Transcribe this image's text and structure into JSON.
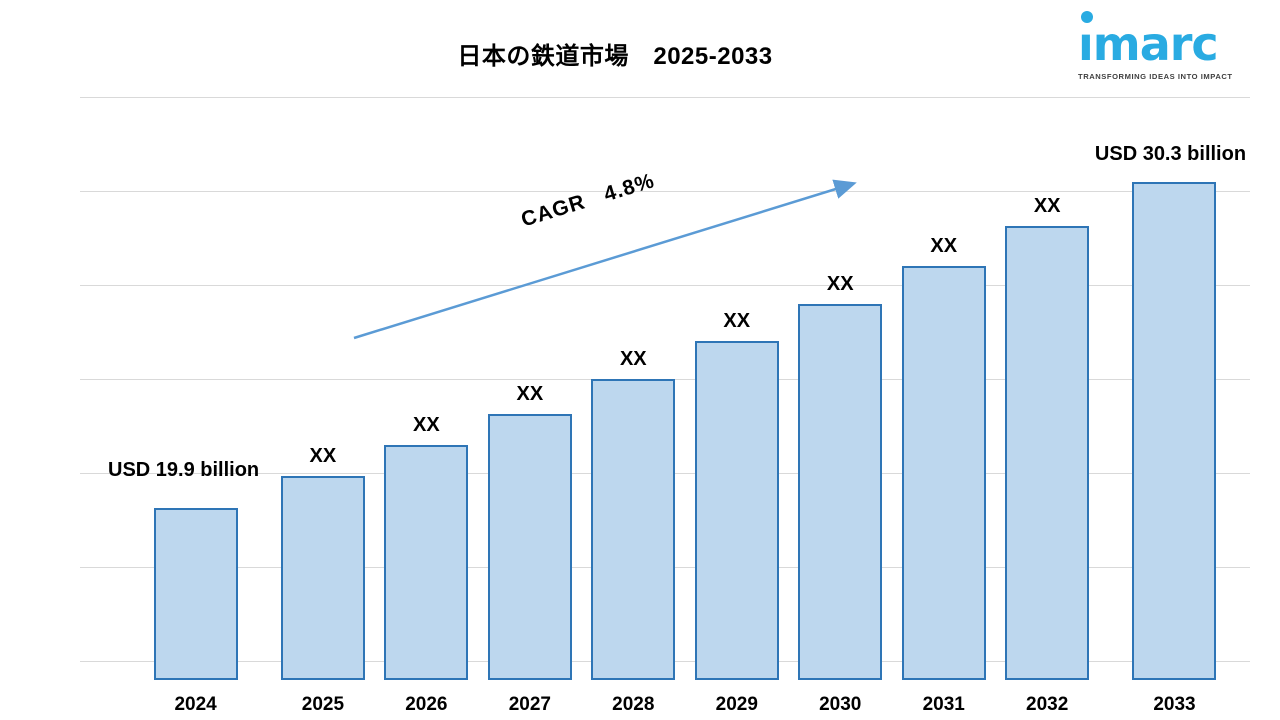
{
  "header": {
    "title": "日本の鉄道市場　2025-2033",
    "logo": {
      "brand": "imarc",
      "brand_display": "ımarc",
      "tagline": "TRANSFORMING IDEAS INTO IMPACT",
      "brand_color": "#29abe2"
    }
  },
  "chart_data": {
    "type": "bar",
    "title": "日本の鉄道市場　2025-2033",
    "categories": [
      "2024",
      "2025",
      "2026",
      "2027",
      "2028",
      "2029",
      "2030",
      "2031",
      "2032",
      "2033"
    ],
    "values": [
      19.9,
      20.9,
      21.9,
      22.9,
      24.0,
      25.2,
      26.4,
      27.6,
      28.9,
      30.3
    ],
    "bar_labels": [
      "USD 19.9 billion",
      "XX",
      "XX",
      "XX",
      "XX",
      "XX",
      "XX",
      "XX",
      "XX",
      "USD  30.3 billion"
    ],
    "unit": "USD billion",
    "first_bar_value_label": "USD 19.9 billion",
    "last_bar_value_label": "USD  30.3 billion",
    "ylim": [
      14.4,
      33
    ],
    "grid": true,
    "gridline_count": 7,
    "legend": "none",
    "annotation": {
      "text": "CAGR   4.8%"
    },
    "colors": {
      "bar_fill": "#bdd7ee",
      "bar_border": "#2e75b6",
      "arrow": "#5b9bd5",
      "gridline": "#d9d9d9"
    }
  }
}
